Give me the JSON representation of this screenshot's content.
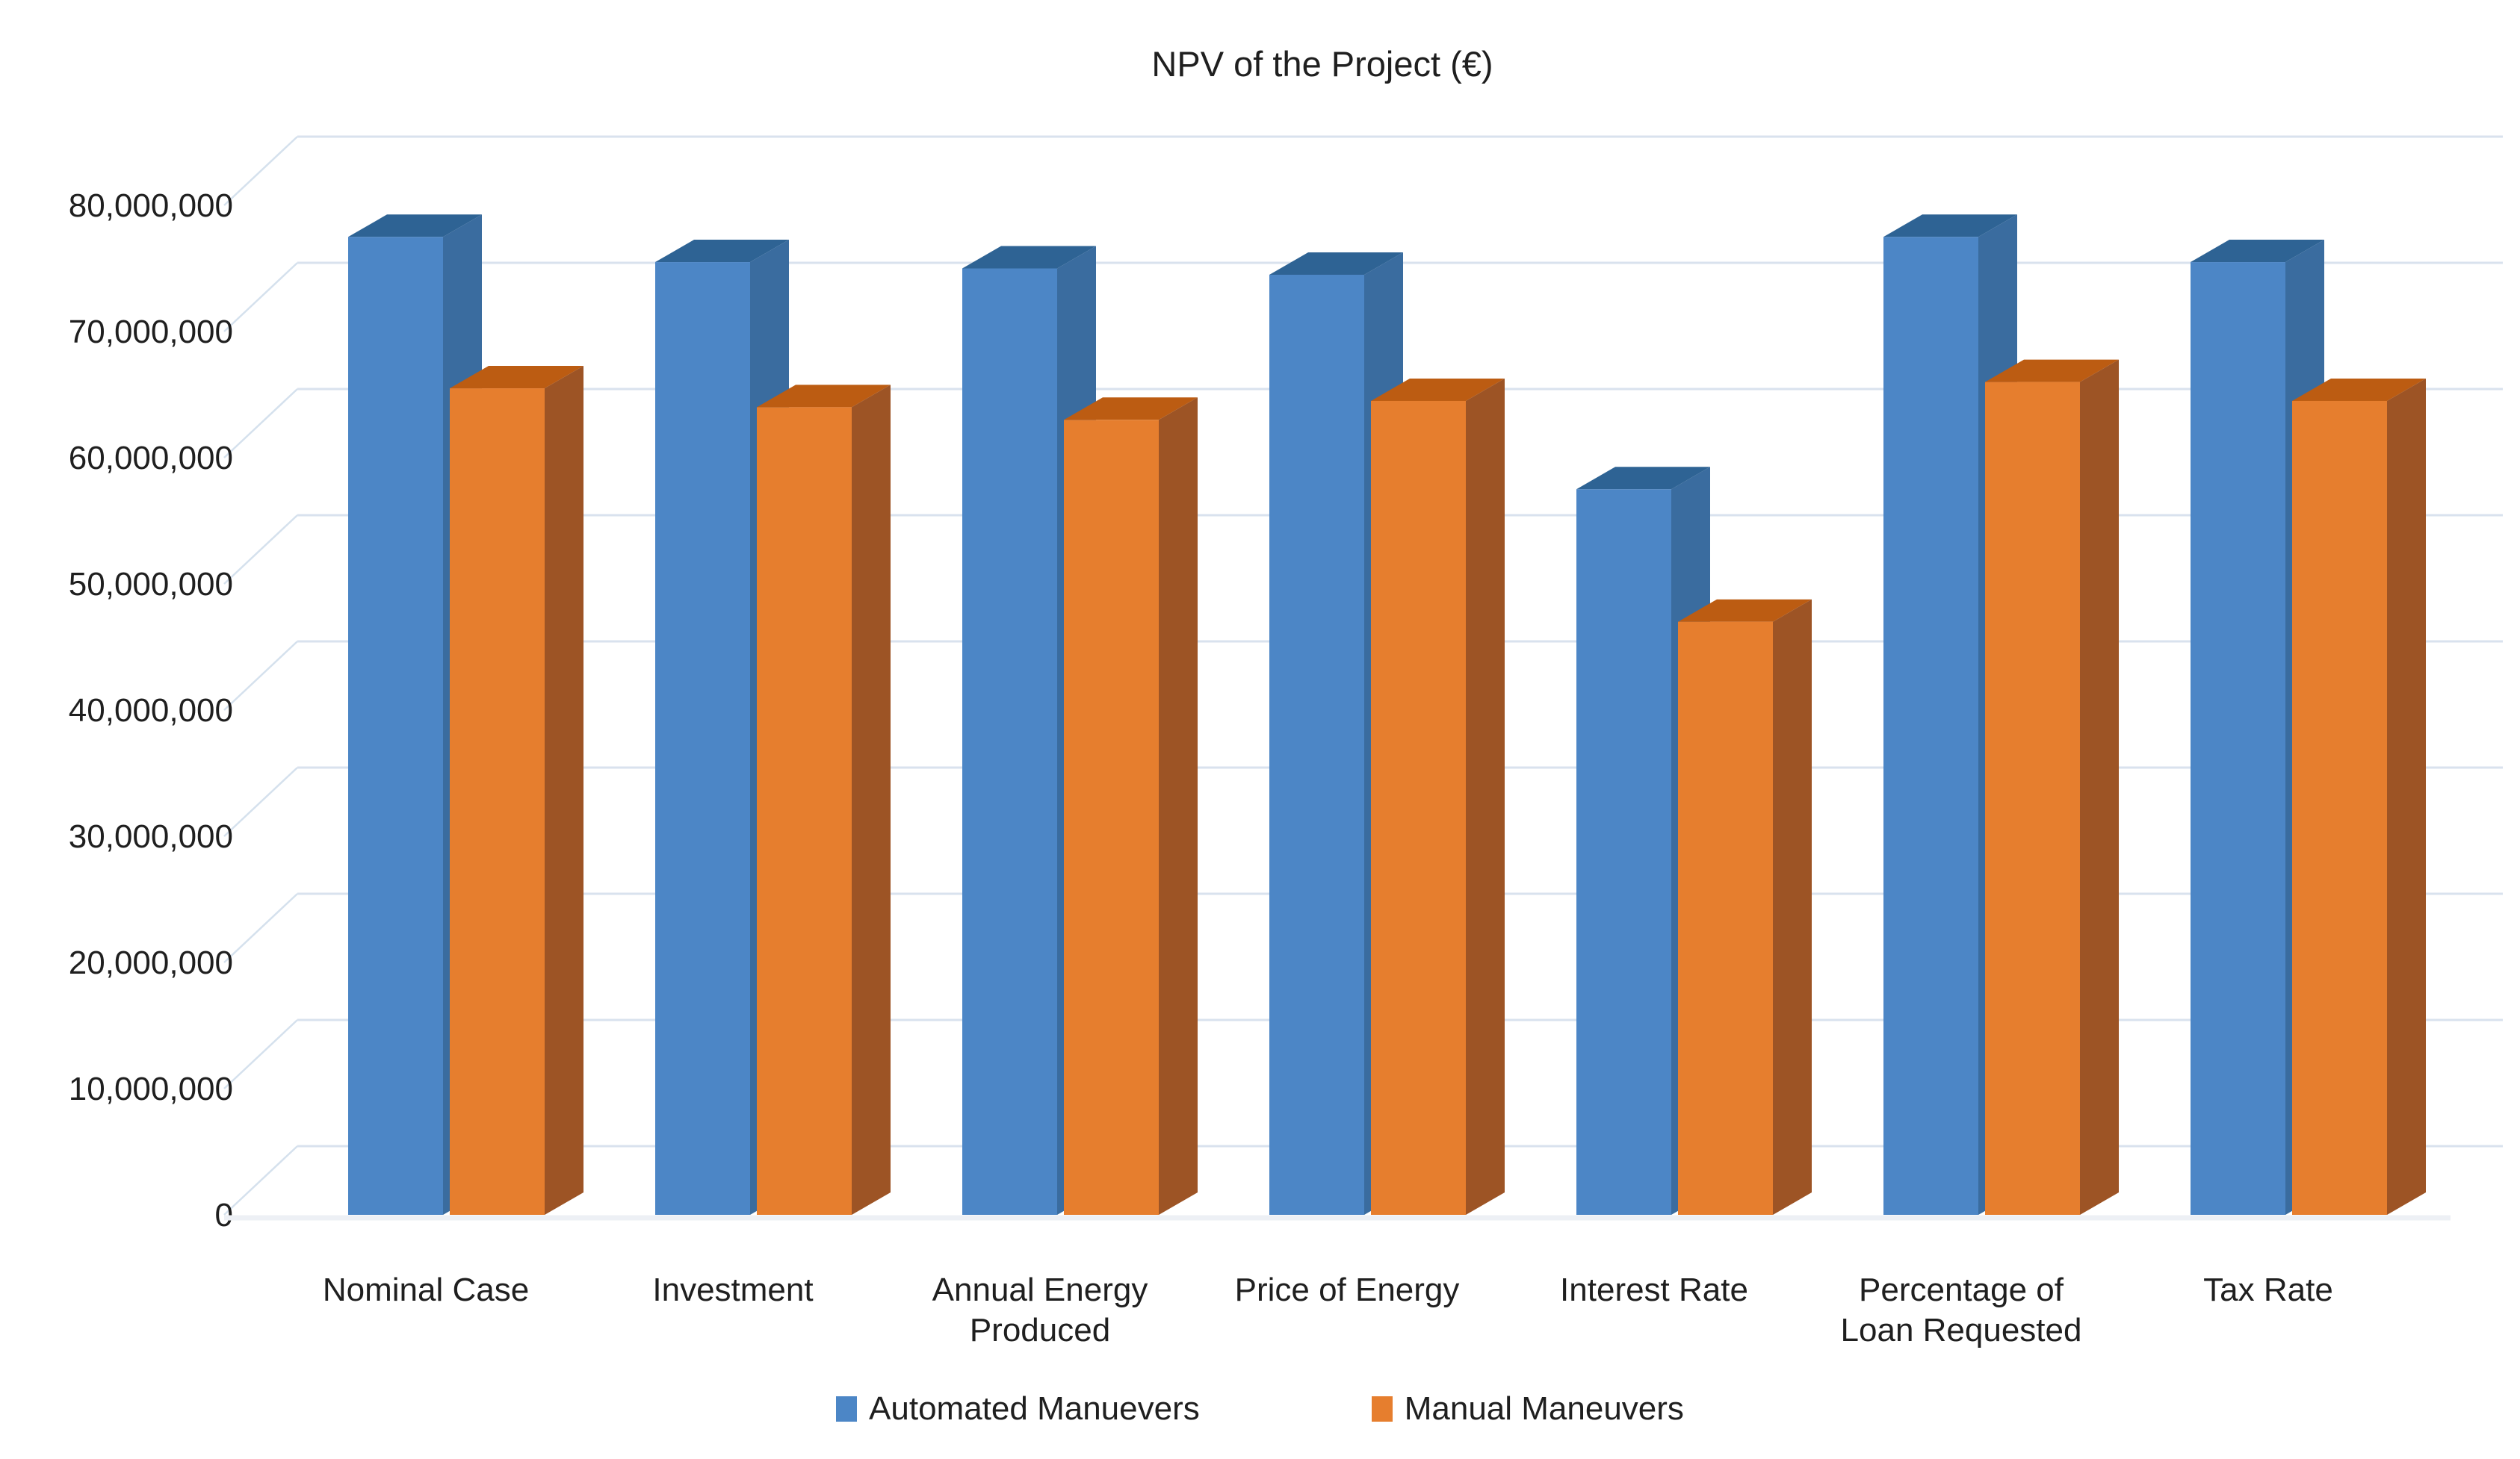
{
  "title": "NPV of the Project (€)",
  "chart_data": {
    "type": "bar",
    "style": "3d-clustered-column",
    "title": "NPV of the Project (€)",
    "categories": [
      "Nominal Case",
      "Investment",
      "Annual Energy Produced",
      "Price of Energy",
      "Interest Rate",
      "Percentage of Loan Requested",
      "Tax Rate"
    ],
    "category_label_lines": [
      [
        "Nominal Case"
      ],
      [
        "Investment"
      ],
      [
        "Annual Energy",
        "Produced"
      ],
      [
        "Price of Energy"
      ],
      [
        "Interest Rate"
      ],
      [
        "Percentage of",
        "Loan Requested"
      ],
      [
        "Tax Rate"
      ]
    ],
    "series": [
      {
        "name": "Automated Manuevers",
        "values": [
          77500000,
          75500000,
          75000000,
          74500000,
          57500000,
          77500000,
          75500000
        ],
        "color_front": "#4C86C6",
        "color_top": "#2E6394",
        "color_side": "#3A6C9F"
      },
      {
        "name": "Manual Maneuvers",
        "values": [
          65500000,
          64000000,
          63000000,
          64500000,
          47000000,
          66000000,
          64500000
        ],
        "color_front": "#E67E2E",
        "color_top": "#BC5C12",
        "color_side": "#9D5425"
      }
    ],
    "xlabel": "",
    "ylabel": "",
    "ylim": [
      0,
      80000000
    ],
    "ytick_step": 10000000,
    "ytick_labels": [
      "0",
      "10,000,000",
      "20,000,000",
      "30,000,000",
      "40,000,000",
      "50,000,000",
      "60,000,000",
      "70,000,000",
      "80,000,000"
    ],
    "grid": true,
    "legend_position": "bottom"
  },
  "colors": {
    "gridline": "#D9E2EE",
    "wall_line": "#C7D7E8",
    "floor_line": "#EDF0F5",
    "text": "#1F1F1F"
  }
}
